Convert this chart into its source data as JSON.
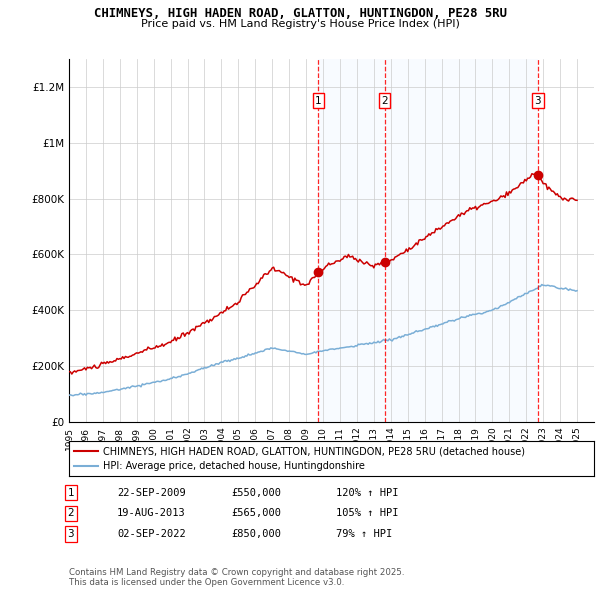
{
  "title1": "CHIMNEYS, HIGH HADEN ROAD, GLATTON, HUNTINGDON, PE28 5RU",
  "title2": "Price paid vs. HM Land Registry's House Price Index (HPI)",
  "legend_line1": "CHIMNEYS, HIGH HADEN ROAD, GLATTON, HUNTINGDON, PE28 5RU (detached house)",
  "legend_line2": "HPI: Average price, detached house, Huntingdonshire",
  "footer": "Contains HM Land Registry data © Crown copyright and database right 2025.\nThis data is licensed under the Open Government Licence v3.0.",
  "sales": [
    {
      "num": 1,
      "date": "22-SEP-2009",
      "price": 550000,
      "hpi_pct": "120% ↑ HPI",
      "x_year": 2009.73
    },
    {
      "num": 2,
      "date": "19-AUG-2013",
      "price": 565000,
      "hpi_pct": "105% ↑ HPI",
      "x_year": 2013.63
    },
    {
      "num": 3,
      "date": "02-SEP-2022",
      "price": 850000,
      "hpi_pct": "79% ↑ HPI",
      "x_year": 2022.67
    }
  ],
  "house_color": "#cc0000",
  "hpi_color": "#7aaed6",
  "shading_color": "#ddeeff",
  "ylim": [
    0,
    1300000
  ],
  "xlim_start": 1995,
  "xlim_end": 2026,
  "yticks": [
    0,
    200000,
    400000,
    600000,
    800000,
    1000000,
    1200000
  ],
  "ytick_labels": [
    "£0",
    "£200K",
    "£400K",
    "£600K",
    "£800K",
    "£1M",
    "£1.2M"
  ],
  "xticks": [
    1995,
    1996,
    1997,
    1998,
    1999,
    2000,
    2001,
    2002,
    2003,
    2004,
    2005,
    2006,
    2007,
    2008,
    2009,
    2010,
    2011,
    2012,
    2013,
    2014,
    2015,
    2016,
    2017,
    2018,
    2019,
    2020,
    2021,
    2022,
    2023,
    2024,
    2025
  ]
}
